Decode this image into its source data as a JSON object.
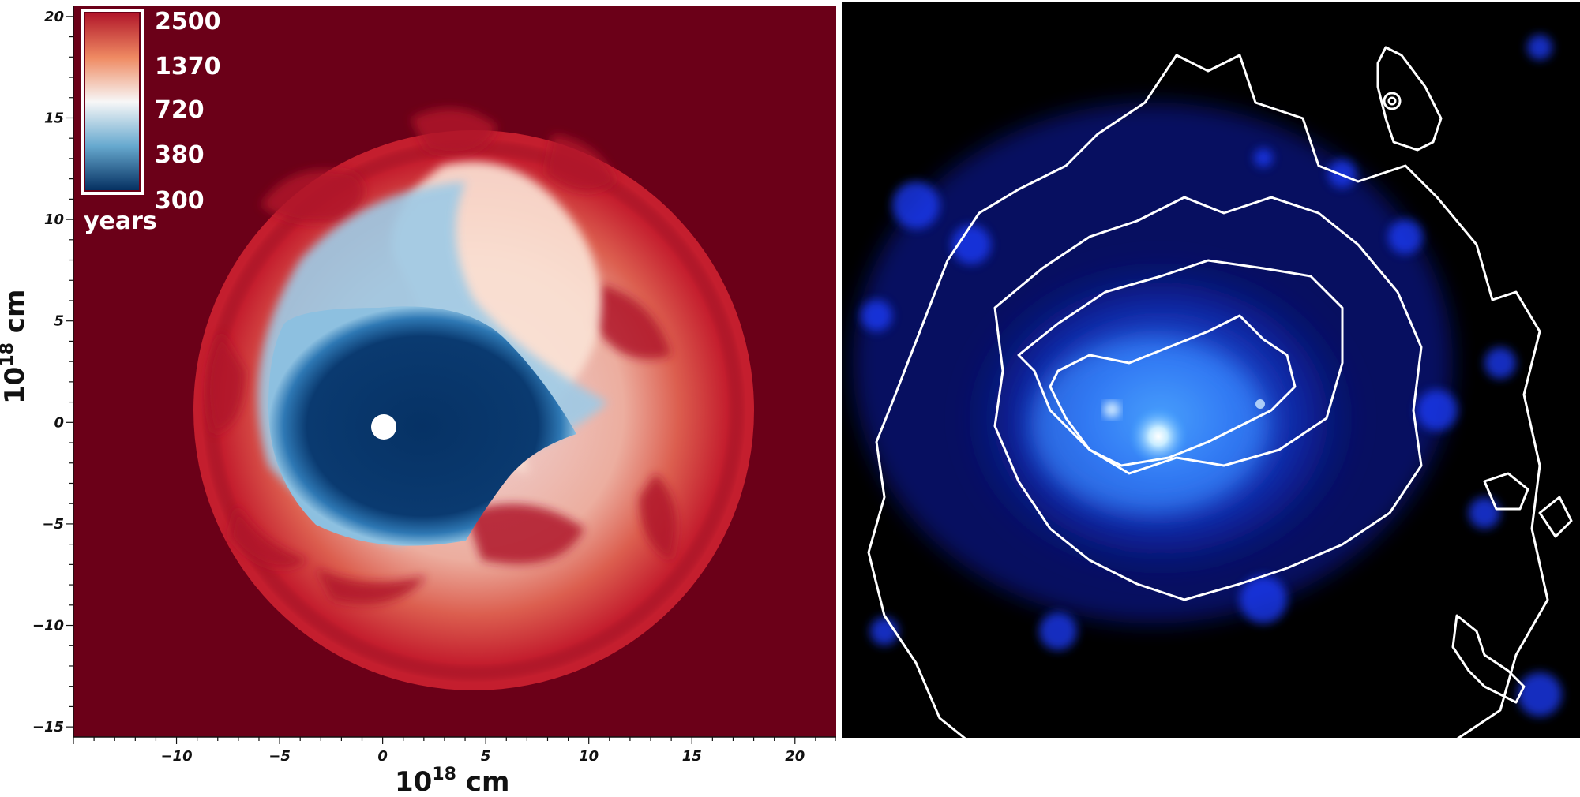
{
  "left_panel": {
    "x_axis": {
      "title_base": "10",
      "title_exp": "18",
      "title_unit": " cm",
      "ticks": [
        {
          "label": "−10",
          "value": -10
        },
        {
          "label": "−5",
          "value": -5
        },
        {
          "label": "0",
          "value": 0
        },
        {
          "label": "5",
          "value": 5
        },
        {
          "label": "10",
          "value": 10
        },
        {
          "label": "15",
          "value": 15
        },
        {
          "label": "20",
          "value": 20
        }
      ],
      "range": [
        -15,
        22
      ]
    },
    "y_axis": {
      "title_base": "10",
      "title_exp": "18",
      "title_unit": " cm",
      "ticks": [
        {
          "label": "20",
          "value": 20
        },
        {
          "label": "15",
          "value": 15
        },
        {
          "label": "10",
          "value": 10
        },
        {
          "label": "5",
          "value": 5
        },
        {
          "label": "0",
          "value": 0
        },
        {
          "label": "−5",
          "value": -5
        },
        {
          "label": "−10",
          "value": -10
        },
        {
          "label": "−15",
          "value": -15
        }
      ],
      "range": [
        -15.5,
        20.5
      ]
    },
    "colorbar": {
      "labels": [
        "2500",
        "1370",
        "720",
        "380",
        "300"
      ],
      "unit": "years",
      "colors": [
        "#b2182b",
        "#ef8a62",
        "#f7f7f7",
        "#67a9cf",
        "#053061"
      ]
    },
    "colors": {
      "background": "#6b0018",
      "shell": "#c41e2e",
      "inner": "#0a3a70",
      "marker": "#ffffff"
    }
  },
  "right_panel": {
    "colors": {
      "background": "#000000",
      "emission": "#1a4cff",
      "core": "#e6f5ff",
      "contours": "#ffffff"
    }
  }
}
